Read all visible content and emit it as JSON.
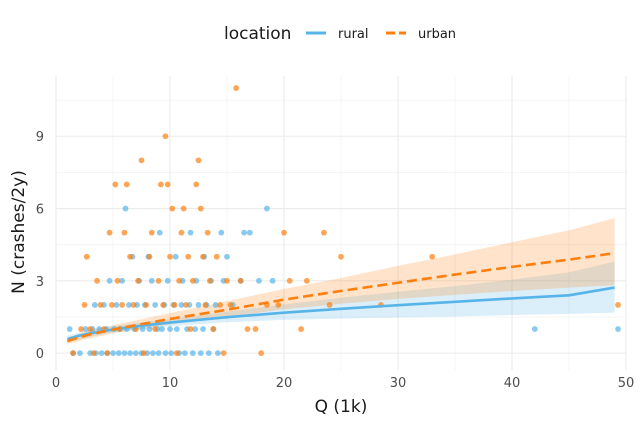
{
  "chart_data": {
    "type": "scatter",
    "title": "",
    "xlabel": "Q (1k)",
    "ylabel": "N (crashes/2y)",
    "xlim": [
      0,
      50
    ],
    "ylim": [
      -0.7,
      11.5
    ],
    "x_ticks": [
      0,
      10,
      20,
      30,
      40,
      50
    ],
    "y_ticks": [
      0,
      3,
      6,
      9
    ],
    "grid": true,
    "legend": {
      "title": "location",
      "position": "top",
      "entries": [
        "rural",
        "urban"
      ]
    },
    "colors": {
      "rural": "#56B4E9",
      "urban": "#FF7F0E"
    },
    "series": [
      {
        "name": "rural",
        "fit_line_style": "solid",
        "points": [
          [
            1.2,
            1
          ],
          [
            1.5,
            0
          ],
          [
            2.1,
            0
          ],
          [
            2.6,
            1
          ],
          [
            3,
            0
          ],
          [
            3.2,
            1
          ],
          [
            3.4,
            2
          ],
          [
            3.5,
            0
          ],
          [
            3.8,
            1
          ],
          [
            4,
            0
          ],
          [
            4.2,
            2
          ],
          [
            4.4,
            1
          ],
          [
            4.5,
            0
          ],
          [
            4.7,
            3
          ],
          [
            5,
            0
          ],
          [
            5.1,
            1
          ],
          [
            5.3,
            2
          ],
          [
            5.5,
            0
          ],
          [
            5.6,
            1
          ],
          [
            5.8,
            3
          ],
          [
            6,
            0
          ],
          [
            6.1,
            6
          ],
          [
            6.2,
            1
          ],
          [
            6.4,
            2
          ],
          [
            6.5,
            0
          ],
          [
            6.7,
            4
          ],
          [
            6.9,
            1
          ],
          [
            7,
            0
          ],
          [
            7.1,
            2
          ],
          [
            7.3,
            3
          ],
          [
            7.5,
            0
          ],
          [
            7.6,
            1
          ],
          [
            7.8,
            2
          ],
          [
            8,
            0
          ],
          [
            8.1,
            4
          ],
          [
            8.2,
            1
          ],
          [
            8.4,
            3
          ],
          [
            8.5,
            0
          ],
          [
            8.7,
            2
          ],
          [
            8.9,
            1
          ],
          [
            9,
            0
          ],
          [
            9.1,
            5
          ],
          [
            9.3,
            1
          ],
          [
            9.5,
            2
          ],
          [
            9.6,
            0
          ],
          [
            9.8,
            3
          ],
          [
            10,
            1
          ],
          [
            10.1,
            0
          ],
          [
            10.3,
            2
          ],
          [
            10.5,
            4
          ],
          [
            10.6,
            1
          ],
          [
            10.8,
            0
          ],
          [
            11,
            2
          ],
          [
            11.1,
            3
          ],
          [
            11.3,
            0
          ],
          [
            11.5,
            1
          ],
          [
            11.7,
            2
          ],
          [
            11.8,
            5
          ],
          [
            12,
            0
          ],
          [
            12.2,
            1
          ],
          [
            12.3,
            3
          ],
          [
            12.5,
            2
          ],
          [
            12.7,
            0
          ],
          [
            12.9,
            1
          ],
          [
            13,
            4
          ],
          [
            13.2,
            2
          ],
          [
            13.4,
            0
          ],
          [
            13.6,
            3
          ],
          [
            13.8,
            1
          ],
          [
            14,
            2
          ],
          [
            14.2,
            0
          ],
          [
            14.5,
            5
          ],
          [
            14.7,
            3
          ],
          [
            15,
            4
          ],
          [
            15.5,
            2
          ],
          [
            16.2,
            3
          ],
          [
            16.5,
            5
          ],
          [
            17,
            5
          ],
          [
            17.8,
            3
          ],
          [
            18.5,
            6
          ],
          [
            19,
            3
          ],
          [
            42,
            1
          ],
          [
            49.3,
            1
          ]
        ],
        "fit": [
          [
            1,
            0.58
          ],
          [
            2,
            0.72
          ],
          [
            3,
            0.82
          ],
          [
            5,
            0.98
          ],
          [
            7.5,
            1.14
          ],
          [
            10,
            1.27
          ],
          [
            15,
            1.49
          ],
          [
            20,
            1.68
          ],
          [
            25,
            1.84
          ],
          [
            30,
            1.99
          ],
          [
            35,
            2.13
          ],
          [
            40,
            2.27
          ],
          [
            45,
            2.4
          ],
          [
            49,
            2.72
          ]
        ],
        "ci_lower": [
          [
            1,
            0.45
          ],
          [
            3,
            0.68
          ],
          [
            5,
            0.86
          ],
          [
            10,
            1.12
          ],
          [
            15,
            1.28
          ],
          [
            20,
            1.38
          ],
          [
            25,
            1.43
          ],
          [
            30,
            1.48
          ],
          [
            35,
            1.52
          ],
          [
            40,
            1.58
          ],
          [
            45,
            1.63
          ],
          [
            49,
            1.68
          ]
        ],
        "ci_upper": [
          [
            1,
            0.72
          ],
          [
            3,
            0.97
          ],
          [
            5,
            1.12
          ],
          [
            10,
            1.42
          ],
          [
            15,
            1.72
          ],
          [
            20,
            2.02
          ],
          [
            25,
            2.3
          ],
          [
            30,
            2.55
          ],
          [
            35,
            2.78
          ],
          [
            40,
            3.05
          ],
          [
            45,
            3.35
          ],
          [
            49,
            3.8
          ]
        ]
      },
      {
        "name": "urban",
        "fit_line_style": "dashed",
        "points": [
          [
            1.5,
            0
          ],
          [
            2.2,
            1
          ],
          [
            2.5,
            2
          ],
          [
            2.7,
            4
          ],
          [
            3,
            1
          ],
          [
            3.3,
            0
          ],
          [
            3.6,
            3
          ],
          [
            3.9,
            2
          ],
          [
            4.2,
            1
          ],
          [
            4.5,
            0
          ],
          [
            4.7,
            5
          ],
          [
            4.9,
            2
          ],
          [
            5.2,
            7
          ],
          [
            5.4,
            3
          ],
          [
            5.6,
            1
          ],
          [
            5.8,
            2
          ],
          [
            6,
            5
          ],
          [
            6.2,
            7
          ],
          [
            6.5,
            4
          ],
          [
            6.8,
            2
          ],
          [
            7,
            1
          ],
          [
            7.2,
            3
          ],
          [
            7.5,
            8
          ],
          [
            7.7,
            0
          ],
          [
            7.9,
            2
          ],
          [
            8.2,
            4
          ],
          [
            8.4,
            5
          ],
          [
            8.7,
            1
          ],
          [
            9,
            3
          ],
          [
            9.2,
            7
          ],
          [
            9.4,
            2
          ],
          [
            9.6,
            9
          ],
          [
            9.8,
            7
          ],
          [
            10,
            4
          ],
          [
            10.2,
            6
          ],
          [
            10.4,
            2
          ],
          [
            10.6,
            0
          ],
          [
            10.8,
            3
          ],
          [
            11,
            5
          ],
          [
            11.2,
            6
          ],
          [
            11.4,
            2
          ],
          [
            11.6,
            4
          ],
          [
            11.8,
            1
          ],
          [
            12,
            3
          ],
          [
            12.3,
            7
          ],
          [
            12.5,
            8
          ],
          [
            12.7,
            6
          ],
          [
            12.9,
            4
          ],
          [
            13.1,
            2
          ],
          [
            13.3,
            5
          ],
          [
            13.5,
            3
          ],
          [
            13.8,
            1
          ],
          [
            14.1,
            4
          ],
          [
            14.4,
            2
          ],
          [
            14.7,
            0
          ],
          [
            15,
            3
          ],
          [
            15.3,
            2
          ],
          [
            15.8,
            11
          ],
          [
            16.2,
            3
          ],
          [
            16.8,
            1
          ],
          [
            17.5,
            1
          ],
          [
            18,
            0
          ],
          [
            18.5,
            2
          ],
          [
            19.5,
            2
          ],
          [
            20,
            5
          ],
          [
            20.5,
            3
          ],
          [
            21.5,
            1
          ],
          [
            22,
            3
          ],
          [
            23.5,
            5
          ],
          [
            24,
            2
          ],
          [
            25,
            4
          ],
          [
            28.5,
            2
          ],
          [
            33,
            4
          ],
          [
            49.3,
            2
          ]
        ],
        "fit": [
          [
            1,
            0.5
          ],
          [
            2,
            0.65
          ],
          [
            3,
            0.78
          ],
          [
            5,
            0.98
          ],
          [
            7.5,
            1.2
          ],
          [
            10,
            1.42
          ],
          [
            15,
            1.8
          ],
          [
            20,
            2.22
          ],
          [
            25,
            2.58
          ],
          [
            30,
            2.92
          ],
          [
            35,
            3.26
          ],
          [
            40,
            3.58
          ],
          [
            45,
            3.88
          ],
          [
            49,
            4.15
          ]
        ],
        "ci_lower": [
          [
            1,
            0.38
          ],
          [
            3,
            0.62
          ],
          [
            5,
            0.82
          ],
          [
            10,
            1.2
          ],
          [
            15,
            1.5
          ],
          [
            20,
            1.82
          ],
          [
            25,
            2.05
          ],
          [
            30,
            2.25
          ],
          [
            35,
            2.42
          ],
          [
            40,
            2.58
          ],
          [
            45,
            2.72
          ],
          [
            49,
            2.82
          ]
        ],
        "ci_upper": [
          [
            1,
            0.64
          ],
          [
            3,
            0.95
          ],
          [
            5,
            1.16
          ],
          [
            10,
            1.66
          ],
          [
            15,
            2.16
          ],
          [
            20,
            2.66
          ],
          [
            25,
            3.12
          ],
          [
            30,
            3.62
          ],
          [
            35,
            4.1
          ],
          [
            40,
            4.6
          ],
          [
            45,
            5.1
          ],
          [
            49,
            5.6
          ]
        ]
      }
    ]
  }
}
